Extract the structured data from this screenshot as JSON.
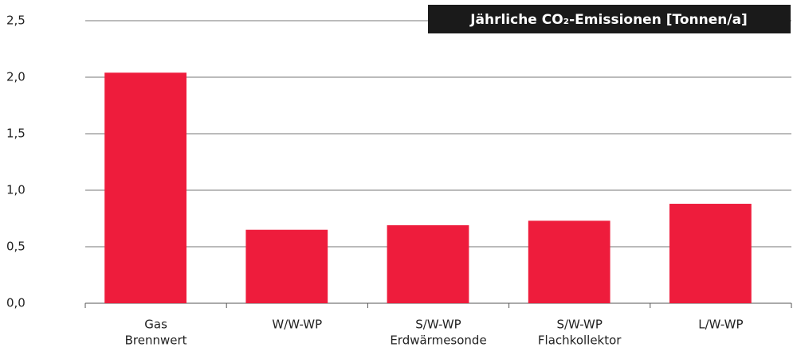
{
  "chart_data": {
    "type": "bar",
    "title": "Jährliche CO₂-Emissionen [Tonnen/a]",
    "categories": [
      [
        "Gas",
        "Brennwert"
      ],
      [
        "W/W-WP"
      ],
      [
        "S/W-WP",
        "Erdwärmesonde"
      ],
      [
        "S/W-WP",
        "Flachkollektor"
      ],
      [
        "L/W-WP"
      ]
    ],
    "values": [
      2.04,
      0.65,
      0.69,
      0.73,
      0.88
    ],
    "color": "#ee1c3c",
    "ylim": [
      0,
      2.5
    ],
    "yticks": [
      {
        "value": 0,
        "label": "0,0"
      },
      {
        "value": 0.5,
        "label": "0,5"
      },
      {
        "value": 1,
        "label": "1,0"
      },
      {
        "value": 1.5,
        "label": "1,5"
      },
      {
        "value": 2,
        "label": "2,0"
      },
      {
        "value": 2.5,
        "label": "2,5"
      }
    ],
    "grid": true
  }
}
